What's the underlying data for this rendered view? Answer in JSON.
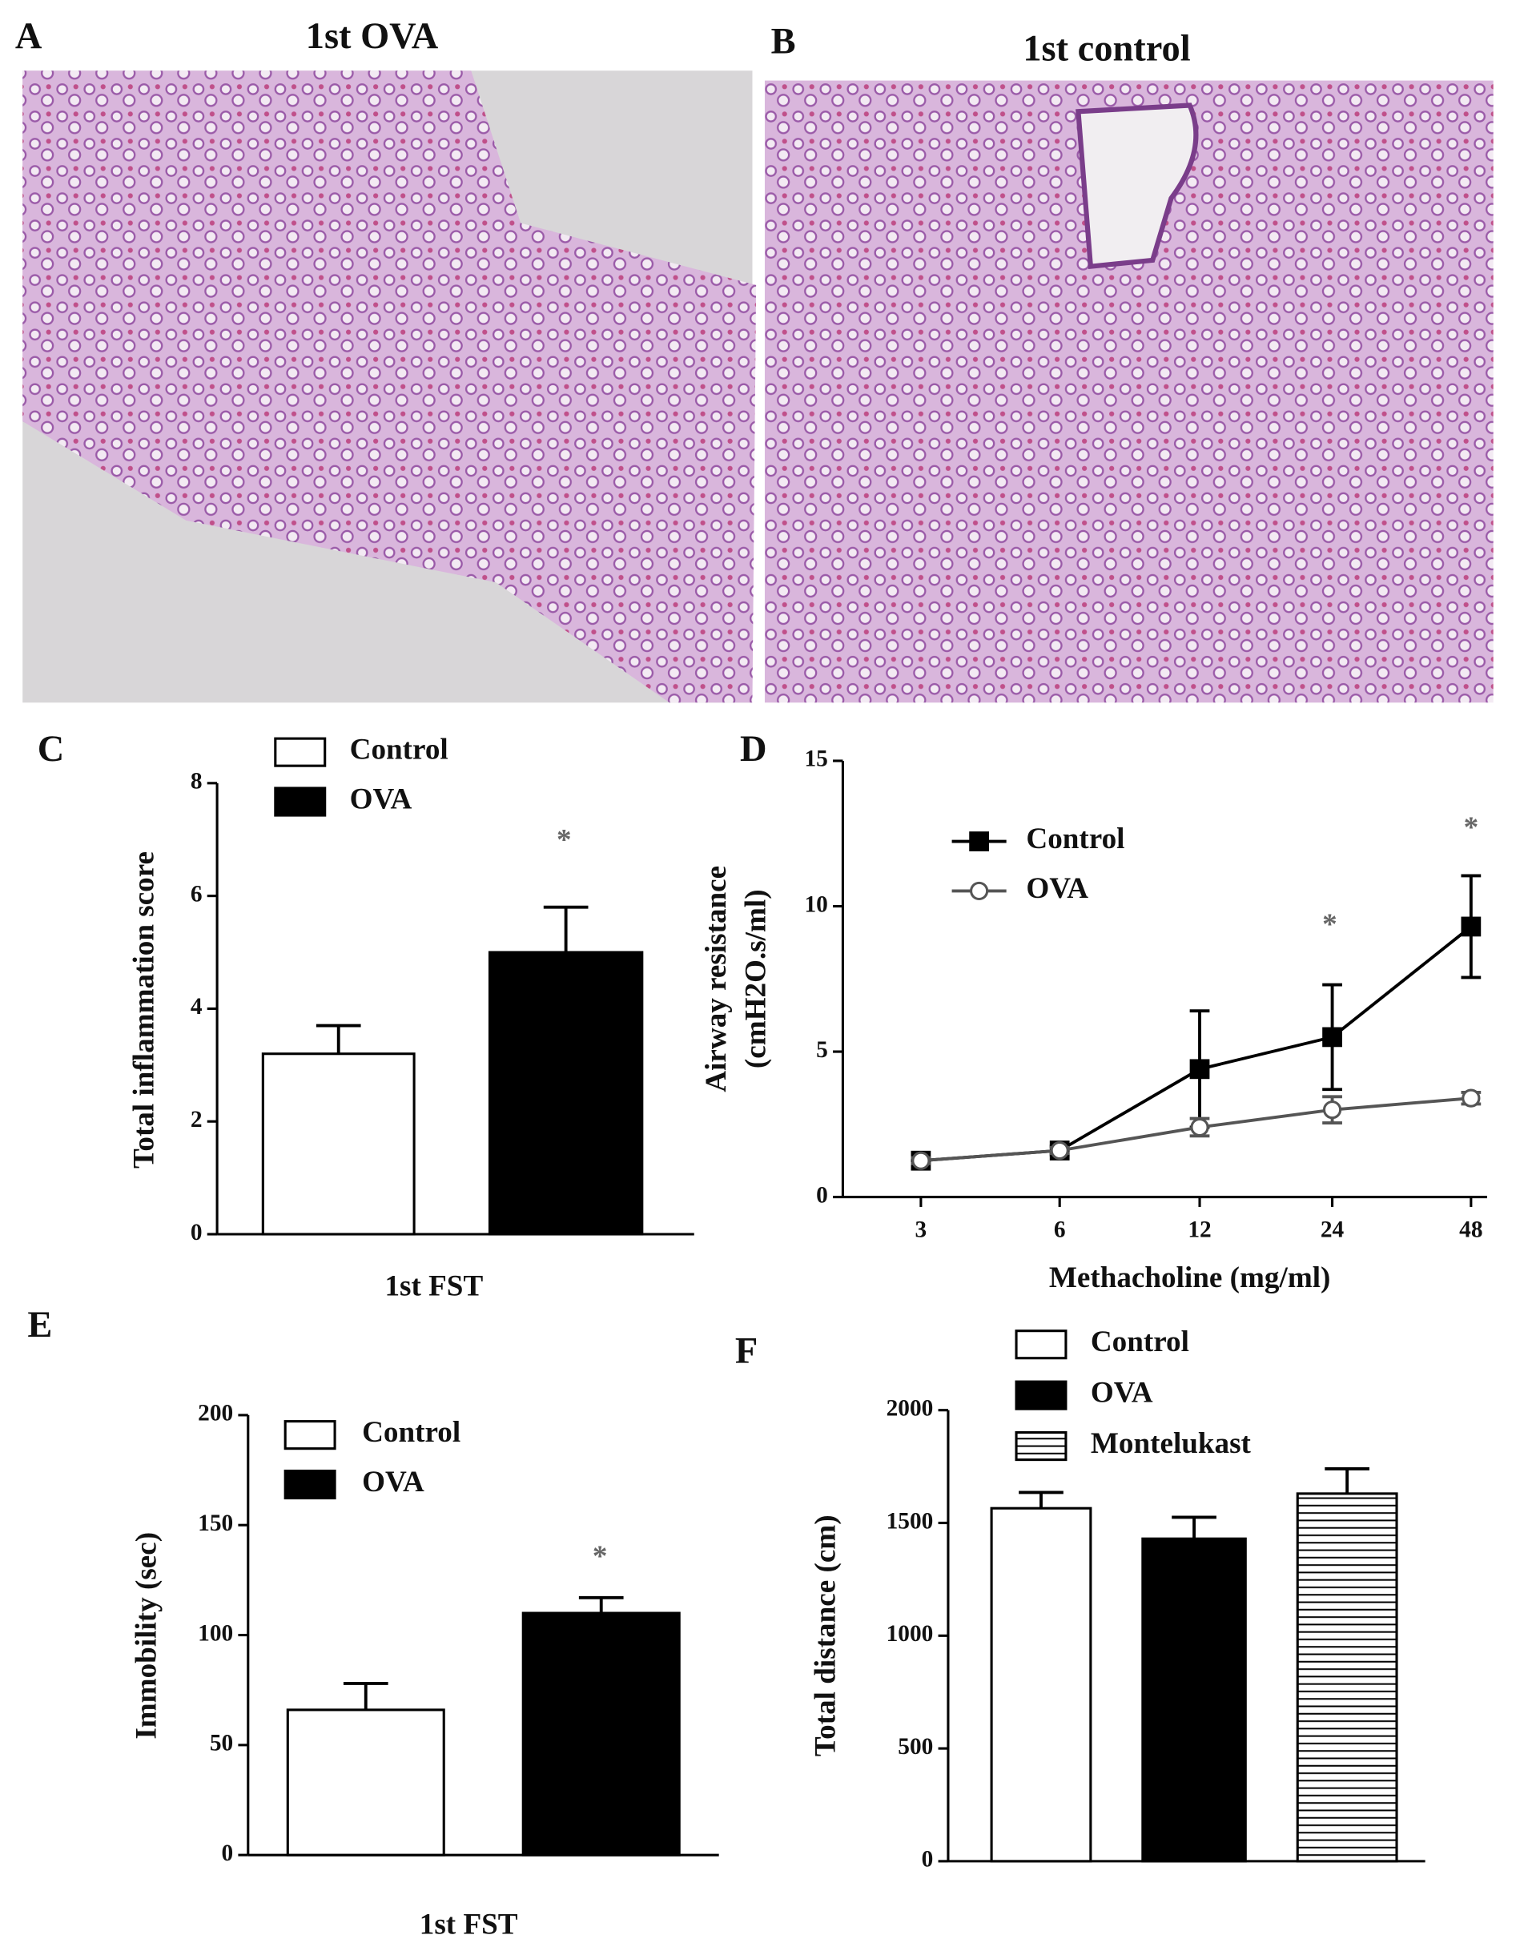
{
  "panels": [
    {
      "label": "A",
      "title": "1st OVA"
    },
    {
      "label": "B",
      "title": "1st control"
    }
  ],
  "chart_data": [
    {
      "type": "bar",
      "label": "C",
      "y_label": "Total inflammation score",
      "x_label": "1st FST",
      "categories": [
        null
      ],
      "series": [
        {
          "name": "Control",
          "color": "#ffffff",
          "values": [
            3.2
          ],
          "errors": [
            0.5
          ]
        },
        {
          "name": "OVA",
          "color": "#000000",
          "values": [
            5.0
          ],
          "errors": [
            0.8
          ]
        }
      ],
      "ylim": [
        0,
        8
      ],
      "yticks": [
        0,
        2,
        4,
        6,
        8
      ],
      "annotations": [
        "*"
      ]
    },
    {
      "type": "line",
      "label": "D",
      "y_label": [
        "Airway resistance",
        "(cmH2O.s/ml)"
      ],
      "x_label": "Methacholine (mg/ml)",
      "categories": [
        3,
        6,
        12,
        24,
        48
      ],
      "series": [
        {
          "name": "Control",
          "color": "#000000",
          "marker": "square",
          "filled": true,
          "values": [
            1.25,
            1.6,
            4.4,
            5.5,
            9.3
          ],
          "errors": [
            0.1,
            0.15,
            2.0,
            1.8,
            1.75
          ]
        },
        {
          "name": "OVA",
          "color": "#555555",
          "marker": "circle",
          "filled": false,
          "values": [
            1.25,
            1.6,
            2.4,
            3.0,
            3.4
          ],
          "errors": [
            0.1,
            0.1,
            0.3,
            0.45,
            0.2
          ]
        }
      ],
      "ylim": [
        0,
        15
      ],
      "yticks": [
        0,
        5,
        10,
        15
      ],
      "annotations": [
        "*",
        "*"
      ]
    },
    {
      "type": "bar",
      "label": "E",
      "y_label": "Immobility (sec)",
      "x_label": "1st FST",
      "categories": [
        null
      ],
      "series": [
        {
          "name": "Control",
          "color": "#ffffff",
          "values": [
            66
          ],
          "errors": [
            12
          ]
        },
        {
          "name": "OVA",
          "color": "#000000",
          "values": [
            110
          ],
          "errors": [
            7
          ]
        }
      ],
      "ylim": [
        0,
        200
      ],
      "yticks": [
        0,
        50,
        100,
        150,
        200
      ],
      "annotations": [
        "*"
      ]
    },
    {
      "type": "bar",
      "label": "F",
      "y_label": "Total distance (cm)",
      "categories": [
        null
      ],
      "series": [
        {
          "name": "Control",
          "color": "#ffffff",
          "values": [
            1565
          ],
          "errors": [
            70
          ]
        },
        {
          "name": "OVA",
          "color": "#000000",
          "values": [
            1430
          ],
          "errors": [
            95
          ]
        },
        {
          "name": "Montelukast",
          "color": "#ffffff",
          "hatch": "horizontal",
          "values": [
            1630
          ],
          "errors": [
            110
          ]
        }
      ],
      "ylim": [
        0,
        2000
      ],
      "yticks": [
        0,
        500,
        1000,
        1500,
        2000
      ]
    }
  ]
}
